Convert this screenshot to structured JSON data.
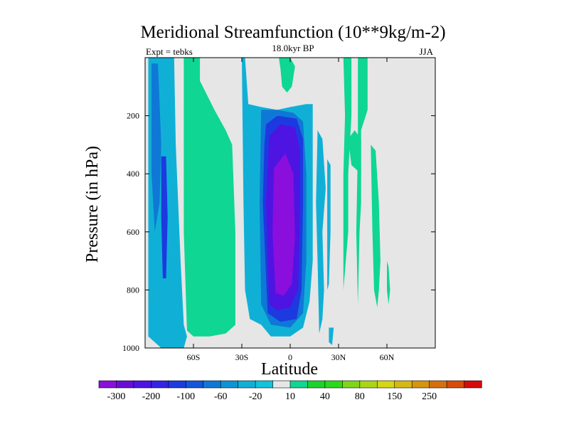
{
  "chart_data": {
    "type": "heatmap",
    "title": "Meridional Streamfunction (10**9kg/m-2)",
    "left_label": "Expt = tebks",
    "center_label": "18.0kyr BP",
    "right_label": "JJA",
    "xlabel": "Latitude",
    "ylabel": "Pressure (in hPa)",
    "xlim": [
      -90,
      90
    ],
    "ylim": [
      1000,
      0
    ],
    "x_ticks": [
      {
        "value": -60,
        "label": "60S"
      },
      {
        "value": -30,
        "label": "30S"
      },
      {
        "value": 0,
        "label": "0"
      },
      {
        "value": 30,
        "label": "30N"
      },
      {
        "value": 60,
        "label": "60N"
      }
    ],
    "y_ticks": [
      {
        "value": 200,
        "label": "200"
      },
      {
        "value": 400,
        "label": "400"
      },
      {
        "value": 600,
        "label": "600"
      },
      {
        "value": 800,
        "label": "800"
      },
      {
        "value": 1000,
        "label": "1000"
      }
    ],
    "colorbar": {
      "colors": [
        "#8a0fdc",
        "#6a0cd6",
        "#4e14e2",
        "#3423e6",
        "#1c3ae0",
        "#1456da",
        "#0f78d6",
        "#0d94d4",
        "#10b0d6",
        "#12c4da",
        "#e6e6e6",
        "#0fd692",
        "#1cd22c",
        "#2cd81a",
        "#7ed618",
        "#aad616",
        "#d6d614",
        "#d6b812",
        "#d69410",
        "#d6700e",
        "#d64c0c",
        "#d60a0a"
      ],
      "labels": [
        {
          "after_index": 0,
          "text": "-300"
        },
        {
          "after_index": 2,
          "text": "-200"
        },
        {
          "after_index": 4,
          "text": "-100"
        },
        {
          "after_index": 6,
          "text": "-60"
        },
        {
          "after_index": 8,
          "text": "-20"
        },
        {
          "after_index": 10,
          "text": "10"
        },
        {
          "after_index": 12,
          "text": "40"
        },
        {
          "after_index": 14,
          "text": "80"
        },
        {
          "after_index": 16,
          "text": "150"
        },
        {
          "after_index": 18,
          "text": "250"
        }
      ]
    },
    "field_regions": [
      {
        "name": "sh-polar-cell",
        "level": -20,
        "pts": [
          [
            -88,
            0
          ],
          [
            -82,
            0
          ],
          [
            -72,
            0
          ],
          [
            -71,
            30
          ],
          [
            -68,
            70
          ],
          [
            -66,
            92
          ],
          [
            -64,
            96
          ],
          [
            -66,
            100
          ],
          [
            -80,
            100
          ],
          [
            -88,
            96
          ]
        ]
      },
      {
        "name": "sh-polar-core-a",
        "level": -60,
        "pts": [
          [
            -86,
            2
          ],
          [
            -82,
            2
          ],
          [
            -80,
            30
          ],
          [
            -81,
            50
          ],
          [
            -84,
            60
          ],
          [
            -86,
            40
          ]
        ]
      },
      {
        "name": "sh-polar-core-b",
        "level": -100,
        "pts": [
          [
            -80,
            34
          ],
          [
            -77,
            34
          ],
          [
            -76,
            55
          ],
          [
            -77,
            76
          ],
          [
            -79,
            76
          ],
          [
            -80,
            55
          ]
        ]
      },
      {
        "name": "sh-ferrel-cell",
        "level": 40,
        "pts": [
          [
            -65,
            0
          ],
          [
            -60,
            0
          ],
          [
            -60,
            8
          ],
          [
            -54,
            16
          ],
          [
            -46,
            26
          ],
          [
            -39,
            34
          ],
          [
            -37,
            50
          ],
          [
            -36,
            80
          ],
          [
            -36,
            91
          ],
          [
            -40,
            93
          ],
          [
            -46,
            94
          ],
          [
            -54,
            95
          ],
          [
            -61,
            93
          ],
          [
            -63,
            80
          ],
          [
            -64,
            50
          ],
          [
            -65,
            20
          ]
        ]
      },
      {
        "name": "sh-ferrel-cell-outer",
        "level": 10,
        "pts": [
          [
            -66,
            0
          ],
          [
            -56,
            0
          ],
          [
            -56,
            8
          ],
          [
            -47,
            18
          ],
          [
            -40,
            25
          ],
          [
            -36,
            30
          ],
          [
            -34,
            60
          ],
          [
            -34,
            92
          ],
          [
            -40,
            95
          ],
          [
            -50,
            96
          ],
          [
            -60,
            96
          ],
          [
            -64,
            94
          ],
          [
            -66,
            60
          ]
        ]
      },
      {
        "name": "hadley-cell-l1",
        "level": -20,
        "pts": [
          [
            -30,
            0
          ],
          [
            -28,
            0
          ],
          [
            -26,
            16
          ],
          [
            -18,
            17
          ],
          [
            -8,
            18
          ],
          [
            0,
            17
          ],
          [
            10,
            16
          ],
          [
            14,
            16
          ],
          [
            14,
            40
          ],
          [
            14,
            70
          ],
          [
            12,
            84
          ],
          [
            8,
            93
          ],
          [
            0,
            96
          ],
          [
            -12,
            96
          ],
          [
            -18,
            92
          ],
          [
            -25,
            90
          ],
          [
            -28,
            80
          ],
          [
            -29,
            50
          ]
        ]
      },
      {
        "name": "hadley-cell-l2",
        "level": -60,
        "pts": [
          [
            -18,
            18
          ],
          [
            -8,
            18
          ],
          [
            2,
            19
          ],
          [
            8,
            22
          ],
          [
            10,
            40
          ],
          [
            10,
            70
          ],
          [
            8,
            88
          ],
          [
            0,
            93
          ],
          [
            -12,
            92
          ],
          [
            -18,
            85
          ],
          [
            -19,
            50
          ]
        ]
      },
      {
        "name": "hadley-cell-l3",
        "level": -100,
        "pts": [
          [
            -15,
            23
          ],
          [
            -8,
            20
          ],
          [
            4,
            21
          ],
          [
            8,
            28
          ],
          [
            8,
            50
          ],
          [
            7,
            80
          ],
          [
            4,
            90
          ],
          [
            -6,
            91
          ],
          [
            -14,
            88
          ],
          [
            -17,
            50
          ],
          [
            -16,
            30
          ]
        ]
      },
      {
        "name": "hadley-cell-l4",
        "level": -200,
        "pts": [
          [
            -13,
            27
          ],
          [
            -6,
            23
          ],
          [
            3,
            24
          ],
          [
            6,
            32
          ],
          [
            6,
            55
          ],
          [
            5,
            80
          ],
          [
            0,
            86
          ],
          [
            -8,
            87
          ],
          [
            -13,
            85
          ],
          [
            -15,
            50
          ]
        ]
      },
      {
        "name": "hadley-cell-core",
        "level": -300,
        "pts": [
          [
            -10,
            38
          ],
          [
            -3,
            33
          ],
          [
            2,
            40
          ],
          [
            3,
            62
          ],
          [
            1,
            78
          ],
          [
            -4,
            82
          ],
          [
            -9,
            81
          ],
          [
            -11,
            60
          ]
        ]
      },
      {
        "name": "eq-upper-lobe",
        "level": 10,
        "pts": [
          [
            -7,
            0
          ],
          [
            0,
            0
          ],
          [
            3,
            3
          ],
          [
            1,
            10
          ],
          [
            -2,
            12
          ],
          [
            -5,
            10
          ],
          [
            -6,
            4
          ]
        ]
      },
      {
        "name": "nh-cell-band-a",
        "level": -20,
        "pts": [
          [
            17,
            25
          ],
          [
            20,
            28
          ],
          [
            22,
            45
          ],
          [
            20,
            60
          ],
          [
            21,
            80
          ],
          [
            20,
            90
          ],
          [
            18,
            95
          ],
          [
            17,
            70
          ],
          [
            16,
            50
          ]
        ]
      },
      {
        "name": "nh-cell-band-b",
        "level": -20,
        "pts": [
          [
            23,
            35
          ],
          [
            25,
            37
          ],
          [
            25,
            60
          ],
          [
            24,
            78
          ],
          [
            23,
            80
          ],
          [
            23,
            55
          ]
        ]
      },
      {
        "name": "nh-cell-tail",
        "level": -20,
        "pts": [
          [
            24,
            93
          ],
          [
            27,
            93
          ],
          [
            26,
            99
          ],
          [
            24,
            98
          ]
        ]
      },
      {
        "name": "nh-upper-band-a",
        "level": 10,
        "pts": [
          [
            33,
            0
          ],
          [
            38,
            0
          ],
          [
            38,
            20
          ],
          [
            36,
            40
          ],
          [
            36,
            60
          ],
          [
            33,
            80
          ],
          [
            33,
            40
          ],
          [
            34,
            20
          ]
        ]
      },
      {
        "name": "nh-upper-band-b",
        "level": 10,
        "pts": [
          [
            42,
            0
          ],
          [
            48,
            0
          ],
          [
            48,
            18
          ],
          [
            44,
            25
          ],
          [
            44,
            50
          ],
          [
            43,
            60
          ],
          [
            42,
            85
          ],
          [
            41,
            60
          ],
          [
            42,
            30
          ]
        ]
      },
      {
        "name": "nh-upper-band-c",
        "level": 10,
        "pts": [
          [
            50,
            30
          ],
          [
            53,
            32
          ],
          [
            55,
            50
          ],
          [
            56,
            70
          ],
          [
            55,
            80
          ],
          [
            54,
            86
          ],
          [
            52,
            80
          ],
          [
            51,
            60
          ]
        ]
      },
      {
        "name": "nh-upper-lobe-d",
        "level": 10,
        "pts": [
          [
            36,
            28
          ],
          [
            40,
            25
          ],
          [
            44,
            28
          ],
          [
            44,
            40
          ],
          [
            38,
            37
          ]
        ]
      },
      {
        "name": "nh-lower-band-e",
        "level": 10,
        "pts": [
          [
            60,
            70
          ],
          [
            61,
            72
          ],
          [
            62,
            80
          ],
          [
            61,
            85
          ],
          [
            60,
            80
          ]
        ]
      }
    ]
  }
}
